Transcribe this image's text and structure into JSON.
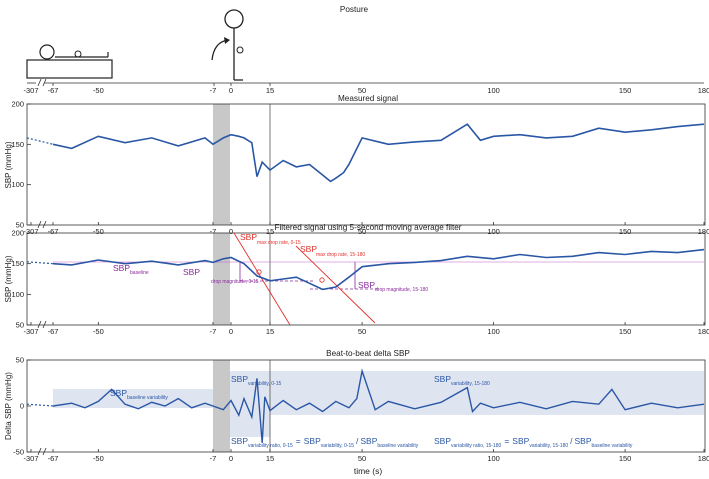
{
  "figure": {
    "posture_title": "Posture",
    "measured_title": "Measured signal",
    "filtered_title": "Filtered signal using 5-second moving average filter",
    "delta_title": "Beat-to-beat delta SBP",
    "xlabel": "time (s)",
    "ylabel_sbp": "SBP (mmHg)",
    "ylabel_delta": "Delta SBP (mmHg)",
    "x_tick_labels": [
      "-307",
      "-67",
      "-50",
      "-7",
      "0",
      "15",
      "50",
      "100",
      "150",
      "180"
    ],
    "sbp_y_ticks": [
      "200",
      "150",
      "100",
      "50"
    ],
    "delta_y_ticks": [
      "50",
      "0",
      "-50"
    ]
  },
  "annotations": {
    "sbp_main": "SBP",
    "baseline_sub": "baseline",
    "drop_mag_015_sub": "drop magnitude, 0-15",
    "drop_mag_15180_sub": "drop magnitude, 15-180",
    "max_drop_015_sub": "max drop rate, 0-15",
    "max_drop_15180_sub": "max drop rate, 15-180",
    "baseline_var_sub": "baseline variability",
    "var_015_sub": "variability, 0-15",
    "var_15180_sub": "variability, 15-180",
    "ratio_015_sub": "variability ratio, 0-15",
    "ratio_15180_sub": "variability ratio, 15-180",
    "equals": "=",
    "slash": "/"
  },
  "colors": {
    "signal": "#2a57a5",
    "purple": "#8a2a9c",
    "red": "#e0322c",
    "grey_band": "#c8c8c8",
    "blue_band": "#dfe4f1"
  },
  "chart_data": [
    {
      "type": "line",
      "name_ref": "measured_title",
      "x": [
        -67,
        -60,
        -50,
        -40,
        -30,
        -20,
        -10,
        -7,
        -3,
        0,
        3,
        5,
        8,
        10,
        12,
        15,
        20,
        25,
        30,
        35,
        38,
        40,
        43,
        45,
        50,
        60,
        70,
        80,
        90,
        95,
        100,
        110,
        120,
        130,
        140,
        150,
        160,
        170,
        180
      ],
      "y": [
        150,
        145,
        160,
        152,
        158,
        148,
        158,
        150,
        158,
        162,
        160,
        158,
        152,
        110,
        128,
        118,
        130,
        122,
        125,
        112,
        104,
        108,
        115,
        125,
        158,
        150,
        153,
        155,
        175,
        155,
        160,
        162,
        158,
        160,
        170,
        165,
        168,
        172,
        175
      ],
      "ylim": [
        50,
        200
      ]
    },
    {
      "type": "line",
      "name_ref": "filtered_title",
      "x": [
        -67,
        -60,
        -50,
        -40,
        -30,
        -20,
        -10,
        -7,
        -3,
        0,
        5,
        10,
        15,
        20,
        25,
        30,
        35,
        40,
        45,
        50,
        60,
        70,
        80,
        90,
        100,
        110,
        120,
        130,
        140,
        150,
        160,
        170,
        180
      ],
      "y": [
        150,
        148,
        156,
        150,
        154,
        148,
        155,
        152,
        158,
        160,
        150,
        130,
        122,
        125,
        128,
        118,
        108,
        112,
        128,
        145,
        150,
        152,
        155,
        162,
        158,
        165,
        160,
        162,
        168,
        165,
        170,
        168,
        173
      ],
      "ylim": [
        50,
        200
      ]
    },
    {
      "type": "line",
      "name_ref": "delta_title",
      "x": [
        -67,
        -60,
        -55,
        -50,
        -45,
        -40,
        -35,
        -30,
        -25,
        -20,
        -15,
        -10,
        -7,
        -3,
        0,
        3,
        5,
        8,
        10,
        12,
        13,
        15,
        20,
        25,
        30,
        35,
        40,
        45,
        48,
        50,
        55,
        60,
        70,
        80,
        90,
        92,
        95,
        100,
        110,
        120,
        130,
        140,
        145,
        150,
        160,
        170,
        180
      ],
      "y": [
        0,
        3,
        -2,
        5,
        18,
        2,
        -3,
        4,
        0,
        8,
        -2,
        3,
        0,
        -4,
        6,
        -10,
        8,
        -12,
        30,
        -40,
        10,
        -5,
        6,
        -4,
        3,
        -6,
        5,
        -2,
        8,
        38,
        -4,
        5,
        -3,
        4,
        20,
        -6,
        3,
        -2,
        4,
        -3,
        5,
        2,
        18,
        -4,
        3,
        -2,
        2
      ],
      "ylim": [
        -50,
        50
      ]
    }
  ]
}
